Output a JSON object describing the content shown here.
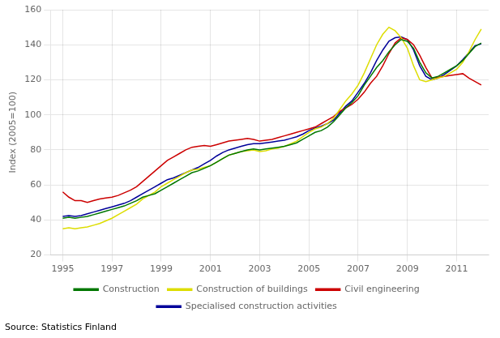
{
  "chart_data": {
    "type": "line",
    "ylabel": "Index (2005=100)",
    "annotations": [
      "Source: Statistics Finland"
    ],
    "x": [
      1995,
      1995.25,
      1995.5,
      1995.75,
      1996,
      1996.25,
      1996.5,
      1996.75,
      1997,
      1997.25,
      1997.5,
      1997.75,
      1998,
      1998.25,
      1998.5,
      1998.75,
      1999,
      1999.25,
      1999.5,
      1999.75,
      2000,
      2000.25,
      2000.5,
      2000.75,
      2001,
      2001.25,
      2001.5,
      2001.75,
      2002,
      2002.25,
      2002.5,
      2002.75,
      2003,
      2003.25,
      2003.5,
      2003.75,
      2004,
      2004.25,
      2004.5,
      2004.75,
      2005,
      2005.25,
      2005.5,
      2005.75,
      2006,
      2006.25,
      2006.5,
      2006.75,
      2007,
      2007.25,
      2007.5,
      2007.75,
      2008,
      2008.25,
      2008.5,
      2008.75,
      2009,
      2009.25,
      2009.5,
      2009.75,
      2010,
      2010.25,
      2010.5,
      2010.75,
      2011,
      2011.25,
      2011.5,
      2011.75,
      2012
    ],
    "series": [
      {
        "name": "Construction",
        "color": "#007700",
        "values": [
          41,
          41.5,
          41,
          41.5,
          42,
          43,
          44,
          45,
          46,
          47,
          48,
          49.5,
          51,
          53,
          54,
          55,
          57,
          59,
          61,
          63,
          65,
          67,
          68,
          69.5,
          71,
          73,
          75,
          77,
          78,
          79,
          80,
          80.5,
          80,
          80.5,
          81,
          81.5,
          82,
          83,
          84,
          86,
          88,
          90,
          91,
          93,
          96,
          100,
          104,
          107,
          111,
          117,
          122,
          127,
          131,
          136,
          140,
          143,
          142,
          138,
          130,
          124,
          121,
          122,
          124,
          126,
          128,
          131,
          135,
          139,
          141
        ]
      },
      {
        "name": "Construction of buildings",
        "color": "#dddd00",
        "values": [
          35,
          35.5,
          35,
          35.5,
          36,
          37,
          38,
          39.5,
          41,
          43,
          45,
          47,
          49,
          52,
          54,
          56,
          59,
          61,
          63,
          65,
          67,
          68.5,
          69,
          70,
          71,
          73,
          75,
          77,
          78,
          79,
          79.5,
          80,
          79,
          79.5,
          80.5,
          81,
          82,
          83.5,
          85,
          87.5,
          90,
          92,
          93,
          95,
          98,
          103,
          108,
          112,
          117,
          124,
          132,
          140,
          146,
          150,
          148,
          144,
          138,
          128,
          120,
          119,
          120,
          121,
          122,
          124,
          126,
          130,
          136,
          143,
          149
        ]
      },
      {
        "name": "Civil engineering",
        "color": "#cc0000",
        "values": [
          56,
          53,
          51,
          51,
          50,
          51,
          52,
          52.5,
          53,
          54,
          55.5,
          57,
          59,
          62,
          65,
          68,
          71,
          74,
          76,
          78,
          80,
          81.5,
          82,
          82.5,
          82,
          83,
          84,
          85,
          85.5,
          86,
          86.5,
          86,
          85,
          85.5,
          86,
          87,
          88,
          89,
          90,
          91,
          92,
          93,
          95,
          97,
          99,
          102,
          104,
          106,
          109,
          113,
          118,
          122,
          128,
          135,
          141,
          144,
          143,
          140,
          134,
          127,
          121,
          121.5,
          122,
          122.5,
          123,
          123.5,
          121,
          119,
          117
        ]
      },
      {
        "name": "Specialised construction activities",
        "color": "#000099",
        "values": [
          42,
          42.5,
          42,
          42.5,
          43.5,
          44.5,
          45.5,
          46.5,
          47.5,
          48.5,
          49.5,
          51,
          53,
          55,
          57,
          59,
          61,
          63,
          64,
          65.5,
          67,
          68.5,
          70,
          72,
          74,
          76.5,
          78.5,
          80,
          81,
          82,
          83,
          83.5,
          83.5,
          84,
          84.5,
          85,
          85.5,
          86.5,
          87.5,
          89,
          91,
          92.5,
          93.5,
          95,
          97,
          101,
          105,
          108,
          113,
          118,
          124,
          131,
          137,
          142,
          144,
          144.5,
          143,
          137,
          128,
          122,
          120,
          121,
          123,
          125.5,
          128,
          131.5,
          135.5,
          139.5,
          140.5
        ]
      }
    ],
    "xlim": [
      1994.5,
      2012.3
    ],
    "xticks": [
      1995,
      1997,
      1999,
      2001,
      2003,
      2005,
      2007,
      2009,
      2011
    ],
    "ylim": [
      20,
      160
    ],
    "yticks": [
      20,
      40,
      60,
      80,
      100,
      120,
      140,
      160
    ],
    "grid": true,
    "legend": "bottom"
  }
}
